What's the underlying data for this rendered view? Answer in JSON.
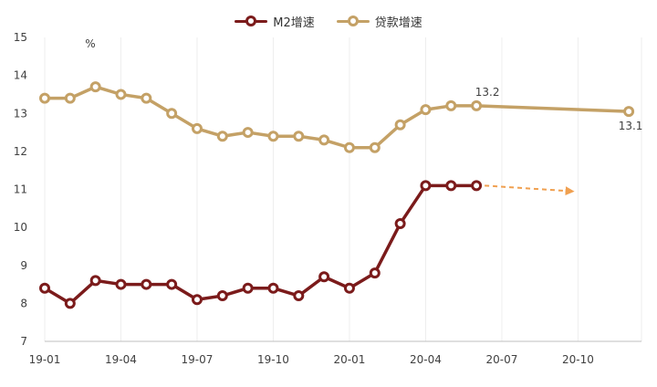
{
  "chart_data": {
    "type": "line",
    "unit_label": "%",
    "x_tick_labels": [
      "19-01",
      "19-04",
      "19-07",
      "19-10",
      "20-01",
      "20-04",
      "20-07",
      "20-10"
    ],
    "ylim": [
      7,
      15
    ],
    "y_ticks": [
      7,
      8,
      9,
      10,
      11,
      12,
      13,
      14,
      15
    ],
    "grid": "vertical",
    "legend_position": "top-center",
    "series": [
      {
        "name": "M2增速",
        "color": "#7b1b1b",
        "x": [
          "19-01",
          "19-02",
          "19-03",
          "19-04",
          "19-05",
          "19-06",
          "19-07",
          "19-08",
          "19-09",
          "19-10",
          "19-11",
          "19-12",
          "20-01",
          "20-02",
          "20-03",
          "20-04",
          "20-05",
          "20-06"
        ],
        "values": [
          8.4,
          8.0,
          8.6,
          8.5,
          8.5,
          8.5,
          8.1,
          8.2,
          8.4,
          8.4,
          8.2,
          8.7,
          8.4,
          8.8,
          10.1,
          11.1,
          11.1,
          11.1
        ]
      },
      {
        "name": "贷款增速",
        "color": "#c4a166",
        "x": [
          "19-01",
          "19-02",
          "19-03",
          "19-04",
          "19-05",
          "19-06",
          "19-07",
          "19-08",
          "19-09",
          "19-10",
          "19-11",
          "19-12",
          "20-01",
          "20-02",
          "20-03",
          "20-04",
          "20-05",
          "20-06",
          "20-12"
        ],
        "values": [
          13.4,
          13.4,
          13.7,
          13.5,
          13.4,
          13.0,
          12.6,
          12.4,
          12.5,
          12.4,
          12.4,
          12.3,
          12.1,
          12.1,
          12.7,
          13.1,
          13.2,
          13.2,
          13.05
        ]
      }
    ],
    "data_labels": [
      {
        "series": "贷款增速",
        "x": "20-06",
        "text": "13.2"
      },
      {
        "series": "贷款增速",
        "x": "20-12",
        "text": "13.1"
      }
    ],
    "annotations": [
      {
        "type": "dashed-arrow",
        "color": "#f0a050",
        "from": {
          "x": "20-06",
          "y": 11.1
        },
        "to": {
          "x": "20-09",
          "y": 10.95
        }
      }
    ]
  }
}
